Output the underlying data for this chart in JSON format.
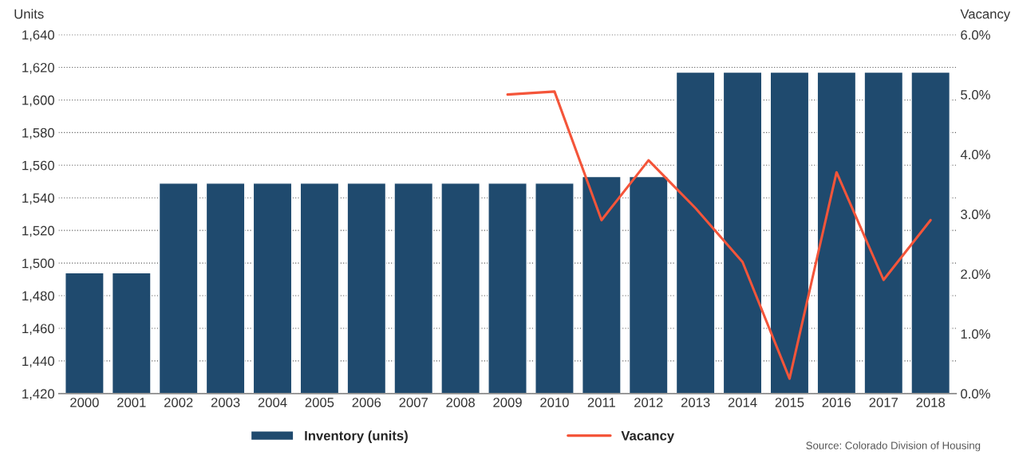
{
  "chart_data": {
    "type": "bar",
    "categories": [
      "2000",
      "2001",
      "2002",
      "2003",
      "2004",
      "2005",
      "2006",
      "2007",
      "2008",
      "2009",
      "2010",
      "2011",
      "2012",
      "2013",
      "2014",
      "2015",
      "2016",
      "2017",
      "2018"
    ],
    "series": [
      {
        "name": "Inventory (units)",
        "color": "#1f4a6e",
        "values": [
          1494,
          1494,
          1549,
          1549,
          1549,
          1549,
          1549,
          1549,
          1549,
          1549,
          1549,
          1553,
          1553,
          1617,
          1617,
          1617,
          1617,
          1617,
          1617
        ]
      },
      {
        "name": "Vacancy",
        "type": "line",
        "axis": "y2",
        "color": "#f4553a",
        "values": [
          null,
          null,
          null,
          null,
          null,
          null,
          null,
          null,
          null,
          5.0,
          5.05,
          2.9,
          3.9,
          3.1,
          2.2,
          0.25,
          3.7,
          1.9,
          2.9
        ]
      }
    ],
    "ylabel": "Units",
    "y2label": "Vacancy",
    "ylim": [
      1420,
      1640
    ],
    "yticks": [
      {
        "value": 1420,
        "label": "1,420"
      },
      {
        "value": 1440,
        "label": "1,440"
      },
      {
        "value": 1460,
        "label": "1,460"
      },
      {
        "value": 1480,
        "label": "1,480"
      },
      {
        "value": 1500,
        "label": "1,500"
      },
      {
        "value": 1520,
        "label": "1,520"
      },
      {
        "value": 1540,
        "label": "1,540"
      },
      {
        "value": 1560,
        "label": "1,560"
      },
      {
        "value": 1580,
        "label": "1,580"
      },
      {
        "value": 1600,
        "label": "1,600"
      },
      {
        "value": 1620,
        "label": "1,620"
      },
      {
        "value": 1640,
        "label": "1,640"
      }
    ],
    "y2lim": [
      0,
      6
    ],
    "y2ticks": [
      {
        "value": 0,
        "label": "0.0%"
      },
      {
        "value": 1,
        "label": "1.0%"
      },
      {
        "value": 2,
        "label": "2.0%"
      },
      {
        "value": 3,
        "label": "3.0%"
      },
      {
        "value": 4,
        "label": "4.0%"
      },
      {
        "value": 5,
        "label": "5.0%"
      },
      {
        "value": 6,
        "label": "6.0%"
      }
    ],
    "grid": "y",
    "legend": "bottom",
    "line_style": "solid",
    "marker": "none",
    "annotations": [
      "Source: Colorado Division of Housing"
    ]
  }
}
